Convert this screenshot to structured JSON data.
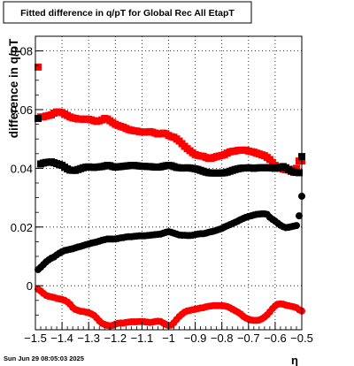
{
  "footer": {
    "timestamp": "Sun Jun 29 08:05:03 2025"
  },
  "chart_data": {
    "type": "scatter",
    "title": "Fitted difference in q/pT for Global Rec All EtapT",
    "xlabel": "η",
    "ylabel": "difference in q/pT",
    "xlim": [
      -1.5,
      -0.5
    ],
    "ylim": [
      -0.015,
      0.085
    ],
    "grid": true,
    "xticks": [
      {
        "value": -1.5,
        "label": "−1.5"
      },
      {
        "value": -1.4,
        "label": "−1.4"
      },
      {
        "value": -1.3,
        "label": "−1.3"
      },
      {
        "value": -1.2,
        "label": "−1.2"
      },
      {
        "value": -1.1,
        "label": "−1.1"
      },
      {
        "value": -1.0,
        "label": "−1"
      },
      {
        "value": -0.9,
        "label": "−0.9"
      },
      {
        "value": -0.8,
        "label": "−0.8"
      },
      {
        "value": -0.7,
        "label": "−0.7"
      },
      {
        "value": -0.6,
        "label": "−0.6"
      },
      {
        "value": -0.5,
        "label": "−0.5"
      }
    ],
    "yticks": [
      {
        "value": 0,
        "label": "0"
      },
      {
        "value": 0.02,
        "label": "0.02"
      },
      {
        "value": 0.04,
        "label": "0.04"
      },
      {
        "value": 0.06,
        "label": "0.06"
      },
      {
        "value": 0.08,
        "label": "0.08"
      }
    ],
    "series": [
      {
        "marker": "square",
        "color": "#ff0000",
        "x": [
          -1.49,
          -1.48,
          -1.47,
          -1.46,
          -1.45,
          -1.44,
          -1.43,
          -1.42,
          -1.41,
          -1.4,
          -1.39,
          -1.38,
          -1.37,
          -1.36,
          -1.35,
          -1.34,
          -1.33,
          -1.32,
          -1.31,
          -1.3,
          -1.29,
          -1.28,
          -1.27,
          -1.26,
          -1.25,
          -1.24,
          -1.23,
          -1.22,
          -1.21,
          -1.2,
          -1.19,
          -1.18,
          -1.17,
          -1.16,
          -1.15,
          -1.14,
          -1.13,
          -1.12,
          -1.11,
          -1.1,
          -1.09,
          -1.08,
          -1.07,
          -1.06,
          -1.05,
          -1.04,
          -1.03,
          -1.02,
          -1.01,
          -1.0,
          -0.99,
          -0.98,
          -0.97,
          -0.96,
          -0.95,
          -0.94,
          -0.93,
          -0.92,
          -0.91,
          -0.9,
          -0.89,
          -0.88,
          -0.87,
          -0.86,
          -0.85,
          -0.84,
          -0.83,
          -0.82,
          -0.81,
          -0.8,
          -0.79,
          -0.78,
          -0.77,
          -0.76,
          -0.75,
          -0.74,
          -0.73,
          -0.72,
          -0.71,
          -0.7,
          -0.69,
          -0.68,
          -0.67,
          -0.66,
          -0.65,
          -0.64,
          -0.63,
          -0.62,
          -0.61,
          -0.6,
          -0.59,
          -0.58,
          -0.57,
          -0.56,
          -0.55,
          -0.54,
          -0.53,
          -0.52,
          -0.51,
          -0.5
        ],
        "y": [
          0.0745,
          0.0575,
          0.0575,
          0.0578,
          0.058,
          0.0582,
          0.0588,
          0.0592,
          0.0592,
          0.059,
          0.0585,
          0.058,
          0.0575,
          0.0572,
          0.057,
          0.0568,
          0.0568,
          0.0567,
          0.0568,
          0.0567,
          0.0565,
          0.0562,
          0.056,
          0.0562,
          0.0565,
          0.057,
          0.0568,
          0.0562,
          0.0556,
          0.055,
          0.0546,
          0.0543,
          0.054,
          0.0536,
          0.0532,
          0.053,
          0.0528,
          0.0527,
          0.0525,
          0.0524,
          0.0523,
          0.0524,
          0.0525,
          0.0523,
          0.052,
          0.0517,
          0.0518,
          0.052,
          0.0518,
          0.0512,
          0.0508,
          0.0506,
          0.05,
          0.0493,
          0.0484,
          0.0475,
          0.0467,
          0.046,
          0.0453,
          0.0447,
          0.0444,
          0.0442,
          0.0441,
          0.0437,
          0.0434,
          0.0434,
          0.0437,
          0.044,
          0.0442,
          0.0444,
          0.0447,
          0.0452,
          0.0456,
          0.0458,
          0.0459,
          0.0461,
          0.0462,
          0.0462,
          0.0462,
          0.0459,
          0.0457,
          0.0455,
          0.0452,
          0.0449,
          0.0446,
          0.0443,
          0.0437,
          0.043,
          0.042,
          0.041,
          0.0405,
          0.04,
          0.0397,
          0.0395,
          0.0394,
          0.0396,
          0.0397,
          0.04,
          0.0425,
          0.0425
        ]
      },
      {
        "marker": "square",
        "color": "#000000",
        "x": [
          -1.49,
          -1.48,
          -1.47,
          -1.46,
          -1.45,
          -1.44,
          -1.43,
          -1.42,
          -1.41,
          -1.4,
          -1.39,
          -1.38,
          -1.37,
          -1.36,
          -1.35,
          -1.34,
          -1.33,
          -1.32,
          -1.31,
          -1.3,
          -1.29,
          -1.28,
          -1.27,
          -1.26,
          -1.25,
          -1.24,
          -1.23,
          -1.22,
          -1.21,
          -1.2,
          -1.19,
          -1.18,
          -1.17,
          -1.16,
          -1.15,
          -1.14,
          -1.13,
          -1.12,
          -1.11,
          -1.1,
          -1.09,
          -1.08,
          -1.07,
          -1.06,
          -1.05,
          -1.04,
          -1.03,
          -1.02,
          -1.01,
          -1.0,
          -0.99,
          -0.98,
          -0.97,
          -0.96,
          -0.95,
          -0.94,
          -0.93,
          -0.92,
          -0.91,
          -0.9,
          -0.89,
          -0.88,
          -0.87,
          -0.86,
          -0.85,
          -0.84,
          -0.83,
          -0.82,
          -0.81,
          -0.8,
          -0.79,
          -0.78,
          -0.77,
          -0.76,
          -0.75,
          -0.74,
          -0.73,
          -0.72,
          -0.71,
          -0.7,
          -0.69,
          -0.68,
          -0.67,
          -0.66,
          -0.65,
          -0.64,
          -0.63,
          -0.62,
          -0.61,
          -0.6,
          -0.59,
          -0.58,
          -0.57,
          -0.56,
          -0.55,
          -0.54,
          -0.53,
          -0.52,
          -0.51,
          -0.5
        ],
        "y": [
          0.057,
          0.0415,
          0.0418,
          0.042,
          0.0421,
          0.0422,
          0.0419,
          0.0416,
          0.0413,
          0.041,
          0.0404,
          0.0398,
          0.0394,
          0.0393,
          0.0393,
          0.0396,
          0.0399,
          0.0402,
          0.0404,
          0.0405,
          0.0404,
          0.0403,
          0.0404,
          0.0405,
          0.0406,
          0.0408,
          0.041,
          0.0409,
          0.0406,
          0.0404,
          0.0405,
          0.0406,
          0.0407,
          0.0408,
          0.0409,
          0.041,
          0.041,
          0.0409,
          0.0408,
          0.0407,
          0.0407,
          0.0406,
          0.0406,
          0.0405,
          0.0404,
          0.0404,
          0.0405,
          0.0407,
          0.0409,
          0.041,
          0.0409,
          0.0406,
          0.0403,
          0.0402,
          0.0401,
          0.0401,
          0.0402,
          0.0401,
          0.04,
          0.0398,
          0.0396,
          0.0393,
          0.039,
          0.0387,
          0.0385,
          0.0384,
          0.0384,
          0.0384,
          0.0384,
          0.0384,
          0.0385,
          0.0387,
          0.039,
          0.0393,
          0.0396,
          0.0398,
          0.04,
          0.0401,
          0.0401,
          0.0402,
          0.0401,
          0.04,
          0.0401,
          0.0402,
          0.0402,
          0.0402,
          0.0402,
          0.0402,
          0.0401,
          0.04,
          0.0402,
          0.0404,
          0.0406,
          0.0402,
          0.0396,
          0.039,
          0.0387,
          0.0386,
          0.0385,
          0.044
        ]
      },
      {
        "marker": "circle",
        "color": "#000000",
        "x": [
          -1.49,
          -1.48,
          -1.47,
          -1.46,
          -1.45,
          -1.44,
          -1.43,
          -1.42,
          -1.41,
          -1.4,
          -1.39,
          -1.38,
          -1.37,
          -1.36,
          -1.35,
          -1.34,
          -1.33,
          -1.32,
          -1.31,
          -1.3,
          -1.29,
          -1.28,
          -1.27,
          -1.26,
          -1.25,
          -1.24,
          -1.23,
          -1.22,
          -1.21,
          -1.2,
          -1.19,
          -1.18,
          -1.17,
          -1.16,
          -1.15,
          -1.14,
          -1.13,
          -1.12,
          -1.11,
          -1.1,
          -1.09,
          -1.08,
          -1.07,
          -1.06,
          -1.05,
          -1.04,
          -1.03,
          -1.02,
          -1.01,
          -1.0,
          -0.99,
          -0.98,
          -0.97,
          -0.96,
          -0.95,
          -0.94,
          -0.93,
          -0.92,
          -0.91,
          -0.9,
          -0.89,
          -0.88,
          -0.87,
          -0.86,
          -0.85,
          -0.84,
          -0.83,
          -0.82,
          -0.81,
          -0.8,
          -0.79,
          -0.78,
          -0.77,
          -0.76,
          -0.75,
          -0.74,
          -0.73,
          -0.72,
          -0.71,
          -0.7,
          -0.69,
          -0.68,
          -0.67,
          -0.66,
          -0.65,
          -0.64,
          -0.63,
          -0.62,
          -0.61,
          -0.6,
          -0.59,
          -0.58,
          -0.57,
          -0.56,
          -0.55,
          -0.54,
          -0.53,
          -0.52,
          -0.51,
          -0.5
        ],
        "y": [
          0.0055,
          0.0063,
          0.0072,
          0.0081,
          0.0088,
          0.0094,
          0.0098,
          0.0105,
          0.0111,
          0.0116,
          0.012,
          0.0122,
          0.0124,
          0.0126,
          0.0129,
          0.0132,
          0.0134,
          0.0137,
          0.014,
          0.0142,
          0.0145,
          0.0147,
          0.0149,
          0.0152,
          0.0155,
          0.0157,
          0.0159,
          0.0159,
          0.0159,
          0.0159,
          0.0161,
          0.0163,
          0.0164,
          0.0166,
          0.0167,
          0.0167,
          0.0168,
          0.0169,
          0.017,
          0.017,
          0.017,
          0.0171,
          0.0172,
          0.0173,
          0.0174,
          0.0175,
          0.0176,
          0.0179,
          0.0182,
          0.0184,
          0.0182,
          0.0179,
          0.0176,
          0.0173,
          0.0172,
          0.0172,
          0.0171,
          0.0171,
          0.0172,
          0.0174,
          0.0176,
          0.0177,
          0.0177,
          0.0179,
          0.0182,
          0.0184,
          0.0186,
          0.0189,
          0.0192,
          0.0195,
          0.02,
          0.0204,
          0.0208,
          0.0212,
          0.0216,
          0.022,
          0.0225,
          0.0229,
          0.0233,
          0.0236,
          0.0238,
          0.0241,
          0.0243,
          0.0244,
          0.0245,
          0.0245,
          0.0243,
          0.0233,
          0.0226,
          0.022,
          0.0213,
          0.0206,
          0.0201,
          0.0198,
          0.0199,
          0.0201,
          0.0203,
          0.0205,
          0.0238,
          0.0305
        ]
      },
      {
        "marker": "circle",
        "color": "#ff0000",
        "x": [
          -1.49,
          -1.48,
          -1.47,
          -1.46,
          -1.45,
          -1.44,
          -1.43,
          -1.42,
          -1.41,
          -1.4,
          -1.39,
          -1.38,
          -1.37,
          -1.36,
          -1.35,
          -1.34,
          -1.33,
          -1.32,
          -1.31,
          -1.3,
          -1.29,
          -1.28,
          -1.27,
          -1.26,
          -1.25,
          -1.24,
          -1.23,
          -1.22,
          -1.21,
          -1.2,
          -1.19,
          -1.18,
          -1.17,
          -1.16,
          -1.15,
          -1.14,
          -1.13,
          -1.12,
          -1.11,
          -1.1,
          -1.09,
          -1.08,
          -1.07,
          -1.06,
          -1.05,
          -1.04,
          -1.03,
          -1.02,
          -1.01,
          -1.0,
          -0.99,
          -0.98,
          -0.97,
          -0.96,
          -0.95,
          -0.94,
          -0.93,
          -0.92,
          -0.91,
          -0.9,
          -0.89,
          -0.88,
          -0.87,
          -0.86,
          -0.85,
          -0.84,
          -0.83,
          -0.82,
          -0.81,
          -0.8,
          -0.79,
          -0.78,
          -0.77,
          -0.76,
          -0.75,
          -0.74,
          -0.73,
          -0.72,
          -0.71,
          -0.7,
          -0.69,
          -0.68,
          -0.67,
          -0.66,
          -0.65,
          -0.64,
          -0.63,
          -0.62,
          -0.61,
          -0.6,
          -0.59,
          -0.58,
          -0.57,
          -0.56,
          -0.55,
          -0.54,
          -0.53,
          -0.52,
          -0.51,
          -0.5
        ],
        "y": [
          -0.0012,
          -0.0018,
          -0.0026,
          -0.0033,
          -0.0036,
          -0.0038,
          -0.004,
          -0.0043,
          -0.0045,
          -0.0047,
          -0.005,
          -0.0055,
          -0.0063,
          -0.0074,
          -0.0081,
          -0.0084,
          -0.0087,
          -0.0088,
          -0.009,
          -0.0092,
          -0.0096,
          -0.0101,
          -0.011,
          -0.012,
          -0.0128,
          -0.0132,
          -0.0135,
          -0.0137,
          -0.0135,
          -0.0131,
          -0.0128,
          -0.0127,
          -0.0127,
          -0.0125,
          -0.0124,
          -0.0123,
          -0.0123,
          -0.0123,
          -0.0122,
          -0.0122,
          -0.0123,
          -0.0124,
          -0.0125,
          -0.0124,
          -0.0122,
          -0.0121,
          -0.0122,
          -0.0127,
          -0.0132,
          -0.0136,
          -0.0134,
          -0.0126,
          -0.0115,
          -0.0105,
          -0.0097,
          -0.009,
          -0.0086,
          -0.0084,
          -0.0082,
          -0.008,
          -0.0078,
          -0.0076,
          -0.0075,
          -0.0072,
          -0.007,
          -0.0069,
          -0.0068,
          -0.0068,
          -0.0068,
          -0.0068,
          -0.0069,
          -0.0071,
          -0.0075,
          -0.008,
          -0.0085,
          -0.009,
          -0.0096,
          -0.0104,
          -0.011,
          -0.0114,
          -0.0117,
          -0.0118,
          -0.0118,
          -0.0117,
          -0.0113,
          -0.0107,
          -0.0099,
          -0.0089,
          -0.0078,
          -0.0069,
          -0.0063,
          -0.0062,
          -0.0063,
          -0.0066,
          -0.0068,
          -0.007,
          -0.0072,
          -0.0075,
          -0.0082,
          -0.0086
        ]
      }
    ]
  }
}
